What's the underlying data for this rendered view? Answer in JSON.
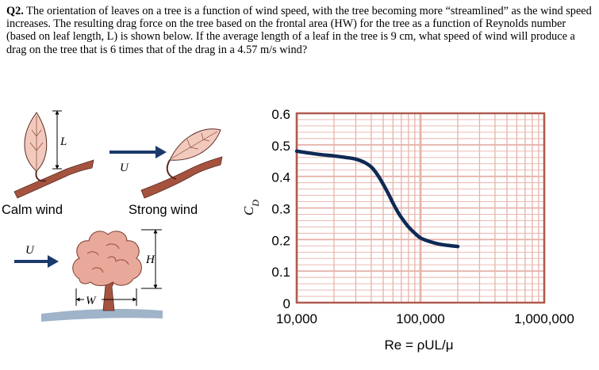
{
  "question": {
    "number": "Q2.",
    "text": "The orientation of leaves on a tree is a function of wind speed, with the tree becoming more “streamlined” as the wind speed increases. The resulting drag force on the tree based on the frontal area (HW) for the tree as a function of Reynolds number (based on leaf length, L) is shown below. If the average length of a leaf in the tree is 9 cm, what speed of wind will produce a drag on the tree that is 6 times that of the drag in a 4.57 m/s wind?"
  },
  "illustration": {
    "calm_label": "Calm wind",
    "strong_label": "Strong wind",
    "leaf_length_label": "L",
    "wind_label": "U",
    "tree_wind_label": "U",
    "height_label": "H",
    "width_label": "W",
    "colors": {
      "leaf": "#f2c9bd",
      "branch": "#a5533f",
      "tree": "#e8a99b",
      "ground": "#9fb3c9",
      "arrow": "#1a3a6b"
    }
  },
  "chart_data": {
    "type": "line",
    "xscale": "log",
    "xlim": [
      10000,
      1000000
    ],
    "ylim": [
      0,
      0.6
    ],
    "xticks": [
      10000,
      100000,
      1000000
    ],
    "xtick_labels": [
      "10,000",
      "100,000",
      "1,000,000"
    ],
    "yticks": [
      0,
      0.1,
      0.2,
      0.3,
      0.4,
      0.5,
      0.6
    ],
    "ytick_labels": [
      "0",
      "0.1",
      "0.2",
      "0.3",
      "0.4",
      "0.5",
      "0.6"
    ],
    "xlabel": "Re = ρUL/μ",
    "ylabel": "C_D",
    "ylabel_main": "C",
    "ylabel_sub": "D",
    "grid": true,
    "colors": {
      "frame": "#b05a4f",
      "grid": "#e6b3aa",
      "line": "#0d2a55"
    },
    "series": [
      {
        "x": [
          10000,
          15000,
          20000,
          25000,
          30000,
          35000,
          40000,
          45000,
          50000,
          55000,
          60000,
          65000,
          70000,
          80000,
          90000,
          100000,
          120000,
          140000,
          170000,
          200000
        ],
        "values": [
          0.48,
          0.47,
          0.465,
          0.46,
          0.455,
          0.445,
          0.43,
          0.405,
          0.375,
          0.345,
          0.315,
          0.29,
          0.27,
          0.24,
          0.22,
          0.205,
          0.193,
          0.186,
          0.181,
          0.178
        ]
      }
    ]
  }
}
